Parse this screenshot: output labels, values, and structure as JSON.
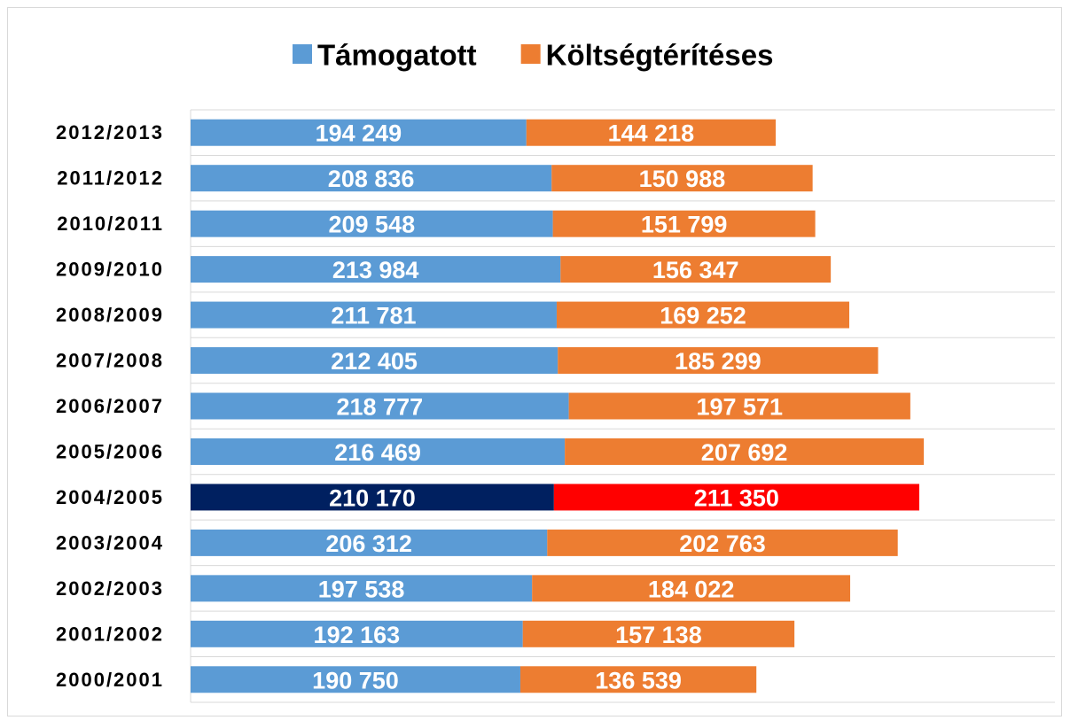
{
  "chart_data": {
    "type": "stacked-bar-horizontal",
    "categories": [
      "2012/2013",
      "2011/2012",
      "2010/2011",
      "2009/2010",
      "2008/2009",
      "2007/2008",
      "2006/2007",
      "2005/2006",
      "2004/2005",
      "2003/2004",
      "2002/2003",
      "2001/2002",
      "2000/2001"
    ],
    "series": [
      {
        "name": "Támogatott",
        "color": "#5b9bd5",
        "colors": [
          "#5b9bd5",
          "#5b9bd5",
          "#5b9bd5",
          "#5b9bd5",
          "#5b9bd5",
          "#5b9bd5",
          "#5b9bd5",
          "#5b9bd5",
          "#002060",
          "#5b9bd5",
          "#5b9bd5",
          "#5b9bd5",
          "#5b9bd5"
        ],
        "values": [
          194249,
          208836,
          209548,
          213984,
          211781,
          212405,
          218777,
          216469,
          210170,
          206312,
          197538,
          192163,
          190750
        ],
        "value_labels": [
          "194 249",
          "208 836",
          "209 548",
          "213 984",
          "211 781",
          "212 405",
          "218 777",
          "216 469",
          "210 170",
          "206 312",
          "197 538",
          "192 163",
          "190 750"
        ]
      },
      {
        "name": "Költségtérítéses",
        "color": "#ed7d31",
        "colors": [
          "#ed7d31",
          "#ed7d31",
          "#ed7d31",
          "#ed7d31",
          "#ed7d31",
          "#ed7d31",
          "#ed7d31",
          "#ed7d31",
          "#ff0000",
          "#ed7d31",
          "#ed7d31",
          "#ed7d31",
          "#ed7d31"
        ],
        "values": [
          144218,
          150988,
          151799,
          156347,
          169252,
          185299,
          197571,
          207692,
          211350,
          202763,
          184022,
          157138,
          136539
        ],
        "value_labels": [
          "144 218",
          "150 988",
          "151 799",
          "156 347",
          "169 252",
          "185 299",
          "197 571",
          "207 692",
          "211 350",
          "202 763",
          "184 022",
          "157 138",
          "136 539"
        ]
      }
    ],
    "xlim": [
      0,
      500000
    ],
    "legend": "top"
  }
}
